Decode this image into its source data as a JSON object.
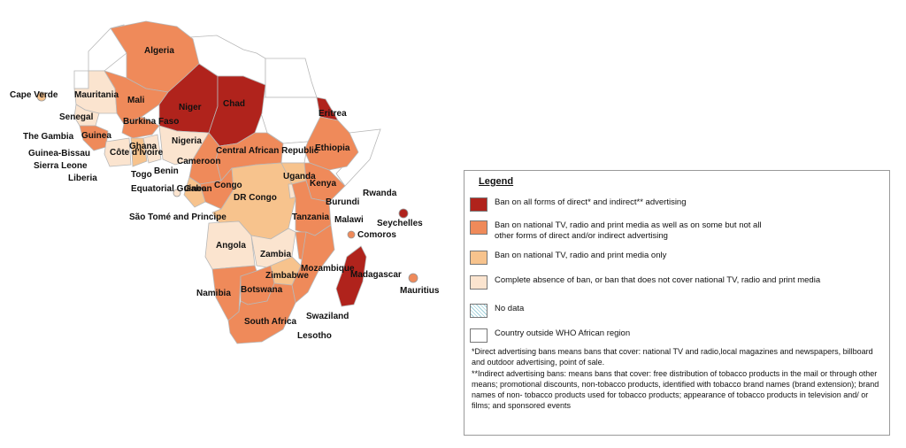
{
  "colors": {
    "ban_all": "#b0231c",
    "ban_some": "#ef8a5a",
    "ban_media": "#f7c38d",
    "no_ban": "#fbe4cf",
    "outside": "#ffffff",
    "no_data": "#9ccfd9",
    "border": "#b8b8b8"
  },
  "countries": {
    "cape_verde": "Cape Verde",
    "mauritania": "Mauritania",
    "algeria": "Algeria",
    "mali": "Mali",
    "niger": "Niger",
    "chad": "Chad",
    "eritrea": "Eritrea",
    "senegal": "Senegal",
    "burkina": "Burkina Faso",
    "guinea": "Guinea",
    "the_gambia": "The Gambia",
    "ghana": "Ghana",
    "nigeria": "Nigeria",
    "ethiopia": "Ethiopia",
    "guinea_bissau": "Guinea-Bissau",
    "cote_divoire": "Côte d'Ivoire",
    "car": "Central African Republic",
    "sierra_leone": "Sierra Leone",
    "cameroon": "Cameroon",
    "benin": "Benin",
    "liberia": "Liberia",
    "togo": "Togo",
    "uganda": "Uganda",
    "kenya": "Kenya",
    "congo": "Congo",
    "gabon": "Gabon",
    "eq_guinea": "Equatorial Guinea",
    "dr_congo": "DR Congo",
    "rwanda": "Rwanda",
    "burundi": "Burundi",
    "tanzania": "Tanzania",
    "sao_tome": "São Tomé and Principe",
    "seychelles": "Seychelles",
    "malawi": "Malawi",
    "comoros": "Comoros",
    "angola": "Angola",
    "zambia": "Zambia",
    "mozambique": "Mozambique",
    "zimbabwe": "Zimbabwe",
    "madagascar": "Madagascar",
    "mauritius": "Mauritius",
    "namibia": "Namibia",
    "botswana": "Botswana",
    "swaziland": "Swaziland",
    "south_africa": "South Africa",
    "lesotho": "Lesotho"
  },
  "legend": {
    "title": "Legend",
    "items": [
      "Ban on all forms of direct* and indirect** advertising",
      "Ban on national TV, radio and print media as well as on some but not all other forms of direct and/or indirect advertising",
      "Ban on national TV, radio and print media only",
      "Complete absence of ban, or ban that does not cover national TV, radio and print media",
      "No data",
      "Country outside WHO African region"
    ],
    "note_direct": "*Direct advertising bans means bans that cover: national TV and radio,local magazines and newspapers, billboard and outdoor advertising, point of sale.",
    "note_indirect": "**Indirect advertising bans: means bans that cover: free distribution of tobacco products in the mail or through other means; promotional discounts, non-tobacco products, identified with tobacco brand names (brand extension); brand names of non- tobacco products used for tobacco products; appearance of tobacco products in television and/ or films; and sponsored events"
  }
}
